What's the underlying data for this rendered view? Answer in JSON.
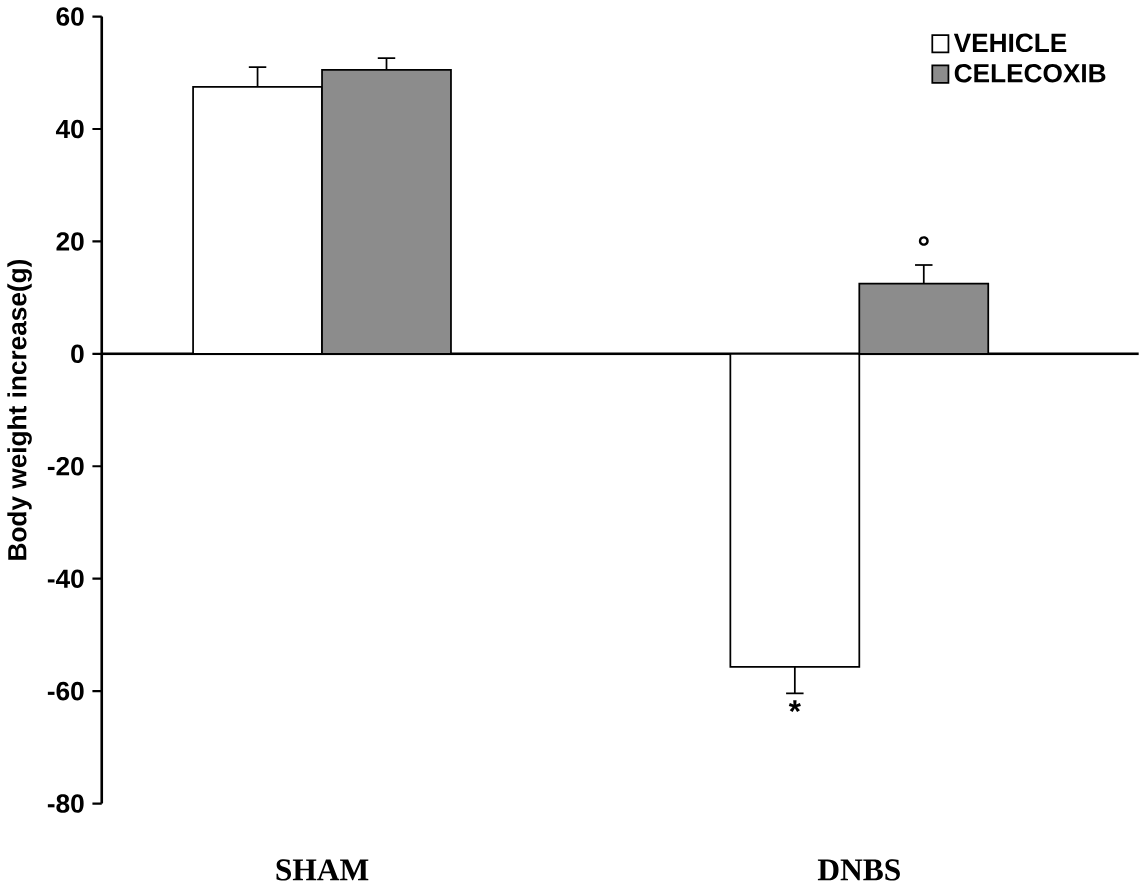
{
  "chart_data": {
    "type": "bar",
    "ylabel": "Body weight increase(g)",
    "categories": [
      "SHAM",
      "DNBS"
    ],
    "series": [
      {
        "name": "VEHICLE",
        "color": "#ffffff",
        "values": [
          47.5,
          -55.7
        ],
        "errors": [
          [
            47.5,
            51
          ],
          [
            -60.4,
            -55.7
          ]
        ],
        "value_labels": [
          null,
          "*"
        ]
      },
      {
        "name": "CELECOXIB",
        "color": "#8c8c8c",
        "values": [
          50.5,
          12.5
        ],
        "errors": [
          [
            50.5,
            52.6
          ],
          [
            12.5,
            15.8
          ]
        ],
        "value_labels": [
          null,
          "°"
        ]
      }
    ],
    "ylim": [
      -80,
      60
    ],
    "yticks": [
      -80,
      -60,
      -40,
      -20,
      0,
      20,
      40,
      60
    ],
    "legend": "top right"
  }
}
